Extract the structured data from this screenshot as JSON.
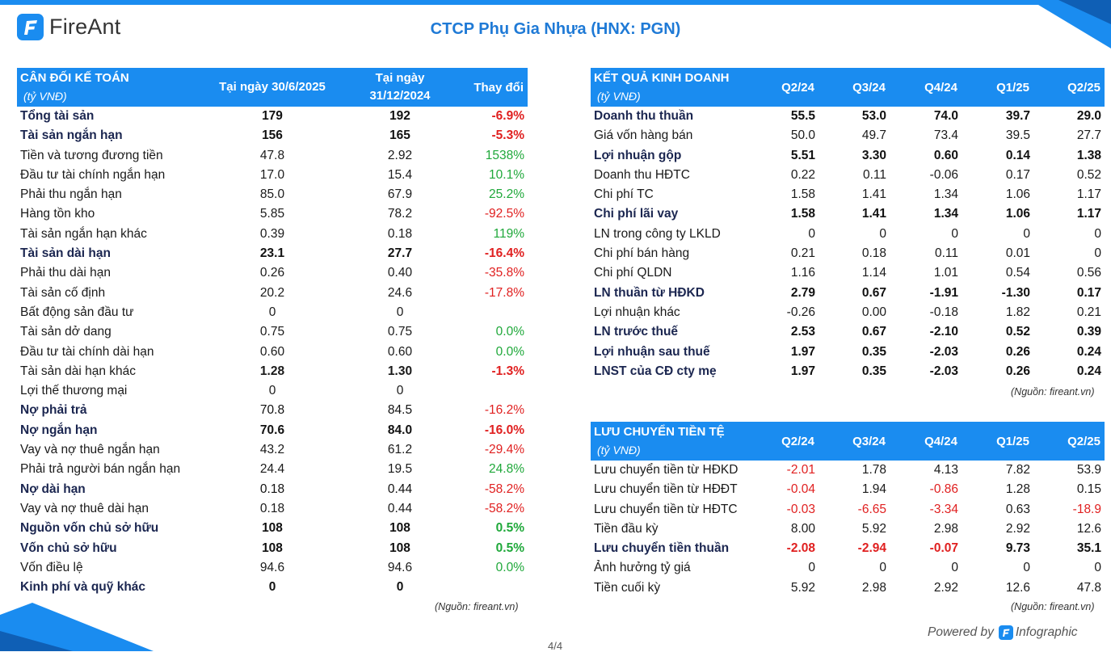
{
  "brand": {
    "name": "FireAnt",
    "color": "#1a8cf0"
  },
  "title": "CTCP Phụ Gia Nhựa (HNX: PGN)",
  "balance_sheet": {
    "title": "CÂN ĐỐI KẾ TOÁN",
    "unit": "(tỷ VNĐ)",
    "col1": "Tại ngày 30/6/2025",
    "col2": "Tại ngày 31/12/2024",
    "col3": "Thay đổi",
    "rows": [
      {
        "label": "Tổng tài sản",
        "v1": "179",
        "v2": "192",
        "chg": "-6.9%",
        "bold": true,
        "dir": "neg"
      },
      {
        "label": "Tài sản ngắn hạn",
        "v1": "156",
        "v2": "165",
        "chg": "-5.3%",
        "bold": true,
        "dir": "neg"
      },
      {
        "label": "Tiền và tương đương tiền",
        "v1": "47.8",
        "v2": "2.92",
        "chg": "1538%",
        "bold": false,
        "dir": "pos"
      },
      {
        "label": "Đầu tư tài chính ngắn hạn",
        "v1": "17.0",
        "v2": "15.4",
        "chg": "10.1%",
        "bold": false,
        "dir": "pos"
      },
      {
        "label": "Phải thu ngắn hạn",
        "v1": "85.0",
        "v2": "67.9",
        "chg": "25.2%",
        "bold": false,
        "dir": "pos"
      },
      {
        "label": "Hàng tồn kho",
        "v1": "5.85",
        "v2": "78.2",
        "chg": "-92.5%",
        "bold": false,
        "dir": "neg"
      },
      {
        "label": "Tài sản ngắn hạn khác",
        "v1": "0.39",
        "v2": "0.18",
        "chg": "119%",
        "bold": false,
        "dir": "pos"
      },
      {
        "label": "Tài sản dài hạn",
        "v1": "23.1",
        "v2": "27.7",
        "chg": "-16.4%",
        "bold": true,
        "dir": "neg"
      },
      {
        "label": "Phải thu dài hạn",
        "v1": "0.26",
        "v2": "0.40",
        "chg": "-35.8%",
        "bold": false,
        "dir": "neg"
      },
      {
        "label": "Tài sản cố định",
        "v1": "20.2",
        "v2": "24.6",
        "chg": "-17.8%",
        "bold": false,
        "dir": "neg"
      },
      {
        "label": "Bất động sản đầu tư",
        "v1": "0",
        "v2": "0",
        "chg": "",
        "bold": false,
        "dir": ""
      },
      {
        "label": "Tài sản dở dang",
        "v1": "0.75",
        "v2": "0.75",
        "chg": "0.0%",
        "bold": false,
        "dir": "pos"
      },
      {
        "label": "Đầu tư tài chính dài hạn",
        "v1": "0.60",
        "v2": "0.60",
        "chg": "0.0%",
        "bold": false,
        "dir": "pos"
      },
      {
        "label": "Tài sản dài hạn khác",
        "v1": "1.28",
        "v2": "1.30",
        "chg": "-1.3%",
        "bold": false,
        "dir": "neg",
        "boldnum": true
      },
      {
        "label": "Lợi thế thương mại",
        "v1": "0",
        "v2": "0",
        "chg": "",
        "bold": false,
        "dir": ""
      },
      {
        "label": "Nợ phải trả",
        "v1": "70.8",
        "v2": "84.5",
        "chg": "-16.2%",
        "bold": true,
        "dir": "neg",
        "plainnum": true
      },
      {
        "label": "Nợ ngắn hạn",
        "v1": "70.6",
        "v2": "84.0",
        "chg": "-16.0%",
        "bold": true,
        "dir": "neg"
      },
      {
        "label": "Vay và nợ thuê ngắn hạn",
        "v1": "43.2",
        "v2": "61.2",
        "chg": "-29.4%",
        "bold": false,
        "dir": "neg"
      },
      {
        "label": "Phải trả người bán ngắn hạn",
        "v1": "24.4",
        "v2": "19.5",
        "chg": "24.8%",
        "bold": false,
        "dir": "pos"
      },
      {
        "label": "Nợ dài hạn",
        "v1": "0.18",
        "v2": "0.44",
        "chg": "-58.2%",
        "bold": true,
        "dir": "neg",
        "plainnum": true
      },
      {
        "label": "Vay và nợ thuê dài hạn",
        "v1": "0.18",
        "v2": "0.44",
        "chg": "-58.2%",
        "bold": false,
        "dir": "neg"
      },
      {
        "label": "Nguồn vốn chủ sở hữu",
        "v1": "108",
        "v2": "108",
        "chg": "0.5%",
        "bold": true,
        "dir": "pos"
      },
      {
        "label": "Vốn chủ sở hữu",
        "v1": "108",
        "v2": "108",
        "chg": "0.5%",
        "bold": true,
        "dir": "pos"
      },
      {
        "label": "Vốn điều lệ",
        "v1": "94.6",
        "v2": "94.6",
        "chg": "0.0%",
        "bold": false,
        "dir": "pos"
      },
      {
        "label": "Kinh phí và quỹ khác",
        "v1": "0",
        "v2": "0",
        "chg": "",
        "bold": true,
        "dir": ""
      }
    ],
    "source": "(Nguồn: fireant.vn)"
  },
  "income_statement": {
    "title": "KẾT QUẢ KINH DOANH",
    "unit": "(tỷ VNĐ)",
    "periods": [
      "Q2/24",
      "Q3/24",
      "Q4/24",
      "Q1/25",
      "Q2/25"
    ],
    "rows": [
      {
        "label": "Doanh thu thuần",
        "v": [
          "55.5",
          "53.0",
          "74.0",
          "39.7",
          "29.0"
        ],
        "bold": true
      },
      {
        "label": "Giá vốn hàng bán",
        "v": [
          "50.0",
          "49.7",
          "73.4",
          "39.5",
          "27.7"
        ],
        "bold": false
      },
      {
        "label": "Lợi nhuận gộp",
        "v": [
          "5.51",
          "3.30",
          "0.60",
          "0.14",
          "1.38"
        ],
        "bold": true
      },
      {
        "label": "Doanh thu HĐTC",
        "v": [
          "0.22",
          "0.11",
          "-0.06",
          "0.17",
          "0.52"
        ],
        "bold": false
      },
      {
        "label": "Chi phí TC",
        "v": [
          "1.58",
          "1.41",
          "1.34",
          "1.06",
          "1.17"
        ],
        "bold": false
      },
      {
        "label": "Chi phí lãi vay",
        "v": [
          "1.58",
          "1.41",
          "1.34",
          "1.06",
          "1.17"
        ],
        "bold": true
      },
      {
        "label": "LN trong công ty LKLD",
        "v": [
          "0",
          "0",
          "0",
          "0",
          "0"
        ],
        "bold": false
      },
      {
        "label": "Chi phí bán hàng",
        "v": [
          "0.21",
          "0.18",
          "0.11",
          "0.01",
          "0"
        ],
        "bold": false
      },
      {
        "label": "Chi phí QLDN",
        "v": [
          "1.16",
          "1.14",
          "1.01",
          "0.54",
          "0.56"
        ],
        "bold": false
      },
      {
        "label": "LN thuần từ HĐKD",
        "v": [
          "2.79",
          "0.67",
          "-1.91",
          "-1.30",
          "0.17"
        ],
        "bold": true
      },
      {
        "label": "Lợi nhuận khác",
        "v": [
          "-0.26",
          "0.00",
          "-0.18",
          "1.82",
          "0.21"
        ],
        "bold": false
      },
      {
        "label": "LN trước thuế",
        "v": [
          "2.53",
          "0.67",
          "-2.10",
          "0.52",
          "0.39"
        ],
        "bold": true
      },
      {
        "label": "Lợi nhuận sau thuế",
        "v": [
          "1.97",
          "0.35",
          "-2.03",
          "0.26",
          "0.24"
        ],
        "bold": true
      },
      {
        "label": "LNST của CĐ cty mẹ",
        "v": [
          "1.97",
          "0.35",
          "-2.03",
          "0.26",
          "0.24"
        ],
        "bold": true
      }
    ],
    "source": "(Nguồn: fireant.vn)"
  },
  "cash_flow": {
    "title": "LƯU CHUYỂN TIỀN TỆ",
    "unit": "(tỷ VNĐ)",
    "periods": [
      "Q2/24",
      "Q3/24",
      "Q4/24",
      "Q1/25",
      "Q2/25"
    ],
    "rows": [
      {
        "label": "Lưu chuyển tiền từ HĐKD",
        "v": [
          "-2.01",
          "1.78",
          "4.13",
          "7.82",
          "53.9"
        ],
        "bold": false,
        "colored": true
      },
      {
        "label": "Lưu chuyển tiền từ HĐĐT",
        "v": [
          "-0.04",
          "1.94",
          "-0.86",
          "1.28",
          "0.15"
        ],
        "bold": false,
        "colored": true
      },
      {
        "label": "Lưu chuyển tiền từ HĐTC",
        "v": [
          "-0.03",
          "-6.65",
          "-3.34",
          "0.63",
          "-18.9"
        ],
        "bold": false,
        "colored": true
      },
      {
        "label": "Tiền đầu kỳ",
        "v": [
          "8.00",
          "5.92",
          "2.98",
          "2.92",
          "12.6"
        ],
        "bold": false,
        "colored": false
      },
      {
        "label": "Lưu chuyển tiền thuần",
        "v": [
          "-2.08",
          "-2.94",
          "-0.07",
          "9.73",
          "35.1"
        ],
        "bold": true,
        "colored": true
      },
      {
        "label": "Ảnh hưởng tỷ giá",
        "v": [
          "0",
          "0",
          "0",
          "0",
          "0"
        ],
        "bold": false,
        "colored": false
      },
      {
        "label": "Tiền cuối kỳ",
        "v": [
          "5.92",
          "2.98",
          "2.92",
          "12.6",
          "47.8"
        ],
        "bold": false,
        "colored": false
      }
    ],
    "source": "(Nguồn: fireant.vn)"
  },
  "footer": {
    "powered_by": "Powered by",
    "infographic": "Infographic",
    "page": "4/4"
  },
  "colors": {
    "header_bg": "#1a8cf0",
    "negative": "#e02020",
    "positive": "#1fa83a",
    "title": "#1f7ad6"
  }
}
